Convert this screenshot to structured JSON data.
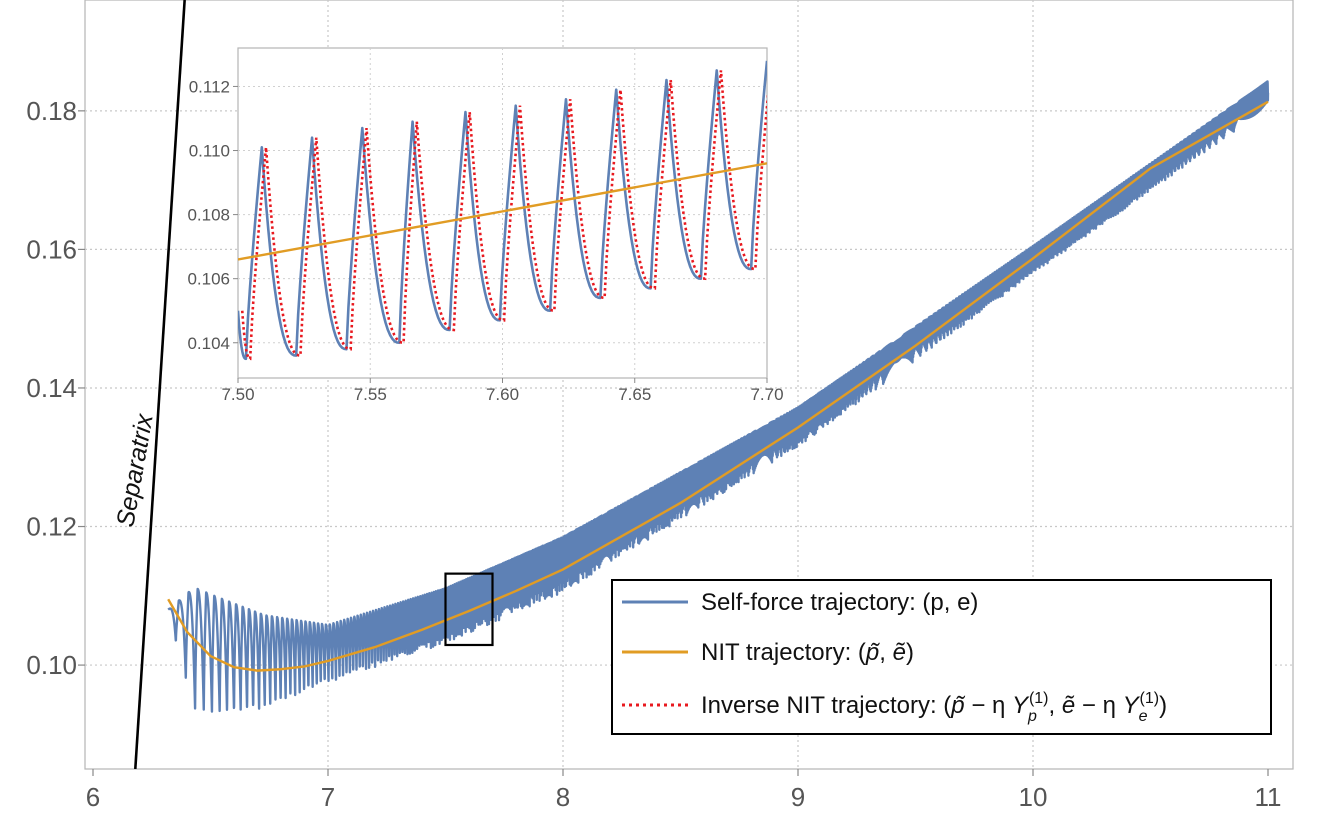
{
  "chart_data": [
    {
      "type": "line",
      "role": "main",
      "xlim": [
        6,
        11
      ],
      "ylim": [
        0.085,
        0.196
      ],
      "x_ticks": [
        "6",
        "7",
        "8",
        "9",
        "10",
        "11"
      ],
      "y_ticks": [
        "0.10",
        "0.12",
        "0.14",
        "0.16",
        "0.18"
      ],
      "grid": true,
      "legend_position": "bottom-right",
      "annotations": [
        "Separatrix"
      ],
      "separatrix": {
        "x": [
          6.18,
          6.39
        ],
        "y": [
          0.085,
          0.196
        ]
      },
      "zoom_box": {
        "x": [
          7.5,
          7.7
        ],
        "y": [
          0.1029,
          0.1132
        ]
      },
      "series": [
        {
          "name": "Self-force trajectory: (p, e)",
          "color": "#5e81b5",
          "style": "solid",
          "osc_peaks": {
            "x": [
              6.32,
              6.43,
              6.53,
              6.63,
              6.73,
              7.0,
              7.5,
              8.0,
              9.0,
              10.0,
              11.0
            ],
            "y": [
              0.108,
              0.1112,
              0.1098,
              0.1085,
              0.1072,
              0.1058,
              0.1111,
              0.1185,
              0.1372,
              0.1605,
              0.1843
            ]
          },
          "osc_troughs": {
            "x": [
              6.32,
              6.43,
              6.53,
              6.63,
              6.73,
              7.0,
              7.5,
              8.0,
              9.0,
              10.0,
              11.0
            ],
            "y": [
              0.1075,
              0.0935,
              0.0928,
              0.0932,
              0.0938,
              0.0975,
              0.1031,
              0.1105,
              0.1315,
              0.1565,
              0.1805
            ]
          }
        },
        {
          "name": "NIT trajectory: (p̃, ẽ)",
          "color": "#e19c24",
          "style": "solid",
          "x": [
            6.32,
            6.4,
            6.5,
            6.6,
            6.7,
            6.8,
            6.9,
            7.0,
            7.2,
            7.4,
            7.6,
            7.8,
            8.0,
            8.5,
            9.0,
            9.5,
            10.0,
            10.5,
            11.0
          ],
          "y": [
            0.1095,
            0.1048,
            0.1013,
            0.0997,
            0.0992,
            0.0994,
            0.0998,
            0.1006,
            0.1026,
            0.1051,
            0.1078,
            0.1107,
            0.1138,
            0.1234,
            0.1343,
            0.1461,
            0.1587,
            0.1717,
            0.1813
          ]
        },
        {
          "name": "Inverse NIT trajectory:",
          "color": "#e8191f",
          "style": "dotted"
        }
      ]
    },
    {
      "type": "line",
      "role": "inset",
      "xlim": [
        7.5,
        7.7
      ],
      "ylim": [
        0.1029,
        0.1132
      ],
      "x_ticks": [
        "7.50",
        "7.55",
        "7.60",
        "7.65",
        "7.70"
      ],
      "y_ticks": [
        "0.104",
        "0.106",
        "0.108",
        "0.110",
        "0.112"
      ],
      "grid": true,
      "series": [
        {
          "name": "Self-force trajectory: (p, e)",
          "color": "#5e81b5",
          "peaks": {
            "x": [
              7.509,
              7.528,
              7.547,
              7.566,
              7.586,
              7.605,
              7.624,
              7.643,
              7.662,
              7.681,
              7.7
            ],
            "y": [
              0.1101,
              0.1104,
              0.1107,
              0.1109,
              0.1112,
              0.1114,
              0.1116,
              0.1119,
              0.1122,
              0.1125,
              0.1128
            ]
          },
          "troughs": {
            "x": [
              7.503,
              7.522,
              7.541,
              7.561,
              7.58,
              7.599,
              7.618,
              7.637,
              7.656,
              7.675,
              7.694
            ],
            "y": [
              0.1035,
              0.1036,
              0.1038,
              0.104,
              0.1044,
              0.1047,
              0.105,
              0.1054,
              0.1057,
              0.106,
              0.1063
            ]
          }
        },
        {
          "name": "NIT trajectory: (p̃, ẽ)",
          "color": "#e19c24",
          "x": [
            7.5,
            7.7
          ],
          "y": [
            0.1066,
            0.1096
          ]
        },
        {
          "name": "Inverse NIT trajectory:",
          "color": "#e8191f",
          "style": "dotted",
          "x_shift": 0.0016
        }
      ]
    }
  ],
  "legend": {
    "self_force": "Self-force trajectory: (p, e)",
    "nit_prefix": "NIT trajectory: (",
    "p_tilde": "p̃",
    "comma": ", ",
    "e_tilde": "ẽ",
    "close_paren": ")",
    "inverse_prefix": "Inverse NIT trajectory: (",
    "minus_eta": " − η ",
    "Y": "Y",
    "sub_p": "p",
    "sub_e": "e",
    "sup_1": "(1)"
  },
  "separatrix_label": "Separatrix"
}
